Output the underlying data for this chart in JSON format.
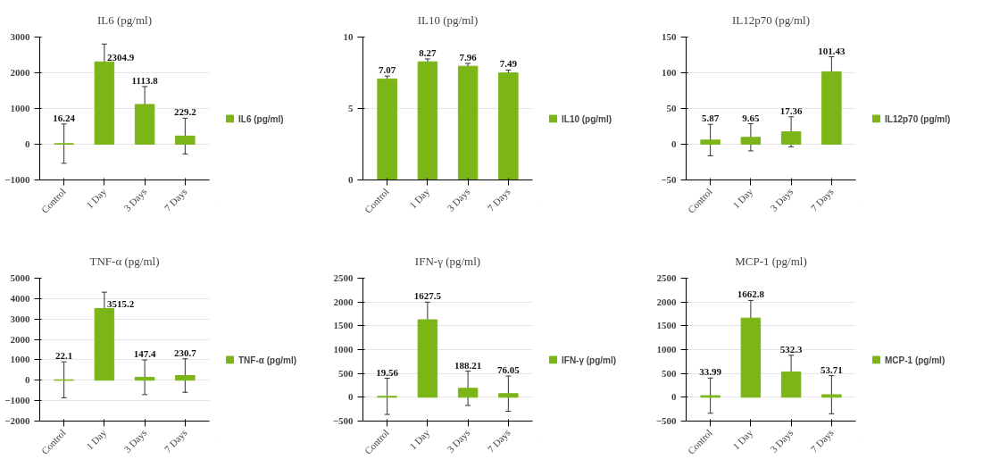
{
  "chart_data": [
    {
      "type": "bar",
      "title": "IL6 (pg/ml)",
      "categories": [
        "Control",
        "1 Day",
        "3 Days",
        "7 Days"
      ],
      "series": [
        {
          "name": "IL6 (pg/ml)",
          "color": "#7cb518",
          "values": [
            16.24,
            2304.9,
            1113.8,
            229.2
          ],
          "errors": [
            550,
            500,
            500,
            500
          ]
        }
      ],
      "ylim": [
        -1000,
        3000
      ],
      "yticks": [
        -1000,
        0,
        1000,
        2000,
        3000
      ],
      "grid": "y",
      "legend": "right",
      "data_labels": true
    },
    {
      "type": "bar",
      "title": "IL10 (pg/ml)",
      "categories": [
        "Control",
        "1 Day",
        "3 Days",
        "7 Days"
      ],
      "series": [
        {
          "name": "IL10 (pg/ml)",
          "color": "#7cb518",
          "values": [
            7.07,
            8.27,
            7.96,
            7.49
          ],
          "errors": [
            0.2,
            0.2,
            0.2,
            0.2
          ]
        }
      ],
      "ylim": [
        0,
        10
      ],
      "yticks": [
        0,
        5,
        10
      ],
      "grid": "y",
      "legend": "right",
      "data_labels": true
    },
    {
      "type": "bar",
      "title": "IL12p70 (pg/ml)",
      "categories": [
        "Control",
        "1 Day",
        "3 Days",
        "7 Days"
      ],
      "series": [
        {
          "name": "IL12p70 (pg/ml)",
          "color": "#7cb518",
          "values": [
            5.87,
            9.65,
            17.36,
            101.43
          ],
          "errors": [
            22,
            19,
            21,
            21
          ]
        }
      ],
      "ylim": [
        -50,
        150
      ],
      "yticks": [
        -50,
        0,
        50,
        100,
        150
      ],
      "grid": "y",
      "legend": "right",
      "data_labels": true
    },
    {
      "type": "bar",
      "title": "TNF-α (pg/ml)",
      "categories": [
        "Control",
        "1 Day",
        "3 Days",
        "7 Days"
      ],
      "series": [
        {
          "name": "TNF-α (pg/ml)",
          "color": "#7cb518",
          "values": [
            22.1,
            3515.2,
            147.4,
            230.7
          ],
          "errors": [
            880,
            800,
            850,
            820
          ]
        }
      ],
      "ylim": [
        -2000,
        5000
      ],
      "yticks": [
        -2000,
        -1000,
        0,
        1000,
        2000,
        3000,
        4000,
        5000
      ],
      "grid": "y",
      "legend": "right",
      "data_labels": true
    },
    {
      "type": "bar",
      "title": "IFN-γ (pg/ml)",
      "categories": [
        "Control",
        "1 Day",
        "3 Days",
        "7 Days"
      ],
      "series": [
        {
          "name": "IFN-γ (pg/ml)",
          "color": "#7cb518",
          "values": [
            19.56,
            1627.5,
            188.21,
            76.05
          ],
          "errors": [
            380,
            370,
            360,
            370
          ]
        }
      ],
      "ylim": [
        -500,
        2500
      ],
      "yticks": [
        -500,
        0,
        500,
        1000,
        1500,
        2000,
        2500
      ],
      "grid": "y",
      "legend": "right",
      "data_labels": true
    },
    {
      "type": "bar",
      "title": "MCP-1 (pg/ml)",
      "categories": [
        "Control",
        "1 Day",
        "3 Days",
        "7 Days"
      ],
      "series": [
        {
          "name": "MCP-1 (pg/ml)",
          "color": "#7cb518",
          "values": [
            33.99,
            1662.8,
            532.3,
            53.71
          ],
          "errors": [
            370,
            370,
            350,
            400
          ]
        }
      ],
      "ylim": [
        -500,
        2500
      ],
      "yticks": [
        -500,
        0,
        500,
        1000,
        1500,
        2000,
        2500
      ],
      "grid": "y",
      "legend": "right",
      "data_labels": true
    }
  ]
}
